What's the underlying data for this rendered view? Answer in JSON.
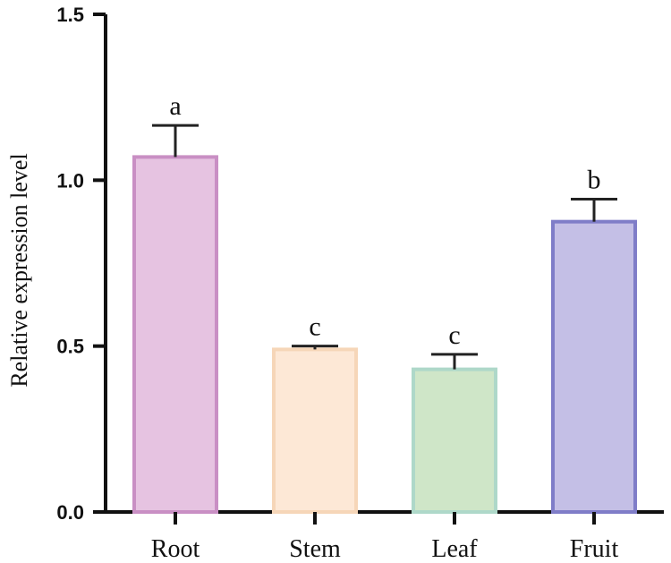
{
  "chart_data": {
    "type": "bar",
    "title": "",
    "xlabel": "",
    "ylabel": "Relative expression level",
    "ylim": [
      0,
      1.5
    ],
    "yticks": [
      0.0,
      0.5,
      1.0,
      1.5
    ],
    "ytick_labels": [
      "0.0",
      "0.5",
      "1.0",
      "1.5"
    ],
    "categories": [
      "Root",
      "Stem",
      "Leaf",
      "Fruit"
    ],
    "values": [
      1.07,
      0.49,
      0.43,
      0.875
    ],
    "errors": [
      0.095,
      0.01,
      0.045,
      0.068
    ],
    "significance": [
      "a",
      "c",
      "c",
      "b"
    ],
    "fill_colors": [
      "#e6c3e1",
      "#fde8d6",
      "#cfe6c8",
      "#c4bfe6"
    ],
    "edge_colors": [
      "#c98fc4",
      "#f6d6b8",
      "#aed8c9",
      "#7f7dc8"
    ],
    "grid": false
  }
}
